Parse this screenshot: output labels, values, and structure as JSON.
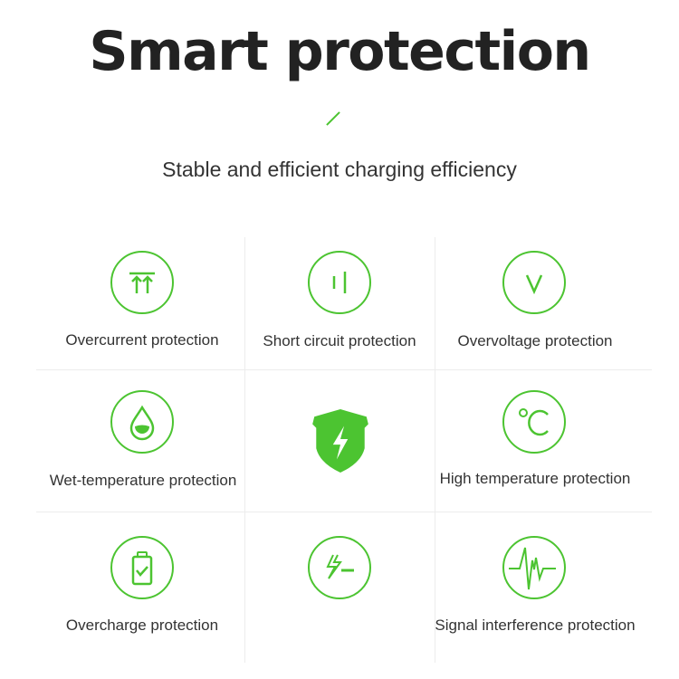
{
  "header": {
    "title": "Smart protection",
    "subtitle": "Stable and efficient charging efficiency"
  },
  "accent_color": "#4cc431",
  "features": [
    {
      "label": "Overcurrent protection",
      "icon": "double-arrow-up-icon"
    },
    {
      "label": "Short circuit protection",
      "icon": "short-circuit-icon"
    },
    {
      "label": "Overvoltage protection",
      "icon": "voltage-v-icon"
    },
    {
      "label": "Wet-temperature protection",
      "icon": "water-drop-icon"
    },
    {
      "label": "",
      "icon": "shield-lightning-icon"
    },
    {
      "label": "High temperature protection",
      "icon": "celsius-icon"
    },
    {
      "label": "Overcharge protection",
      "icon": "battery-check-icon"
    },
    {
      "label": "",
      "icon": "lightning-minus-icon"
    },
    {
      "label": "Signal interference protection",
      "icon": "signal-wave-icon"
    }
  ]
}
